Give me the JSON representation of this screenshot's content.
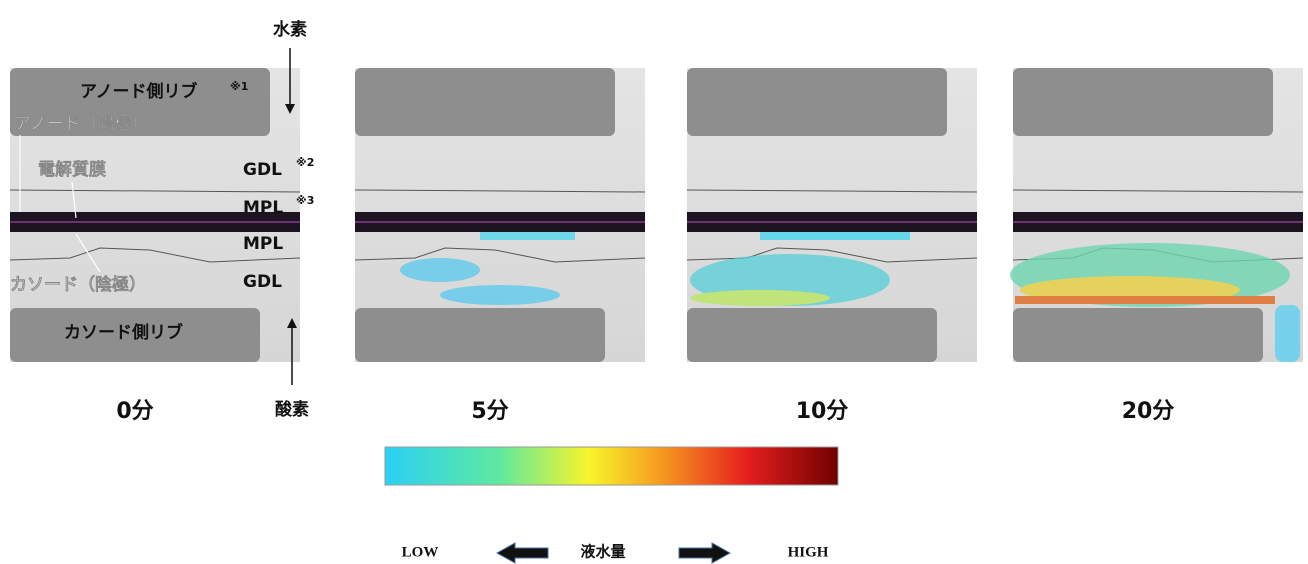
{
  "labels": {
    "hydrogen": "水素",
    "anode_rib": "アノード側リブ",
    "note1": "※1",
    "anode": "アノード（陽極）",
    "membrane": "電解質膜",
    "gdl_top": "GDL",
    "note2": "※2",
    "mpl_top": "MPL",
    "note3": "※3",
    "mpl_bottom": "MPL",
    "gdl_bottom": "GDL",
    "cathode": "カソード（陰極）",
    "cathode_rib": "カソード側リブ",
    "oxygen": "酸素"
  },
  "panels": [
    {
      "time": "0分"
    },
    {
      "time": "5分"
    },
    {
      "time": "10分"
    },
    {
      "time": "20分"
    }
  ],
  "legend": {
    "low": "LOW",
    "title": "液水量",
    "high": "HIGH"
  }
}
